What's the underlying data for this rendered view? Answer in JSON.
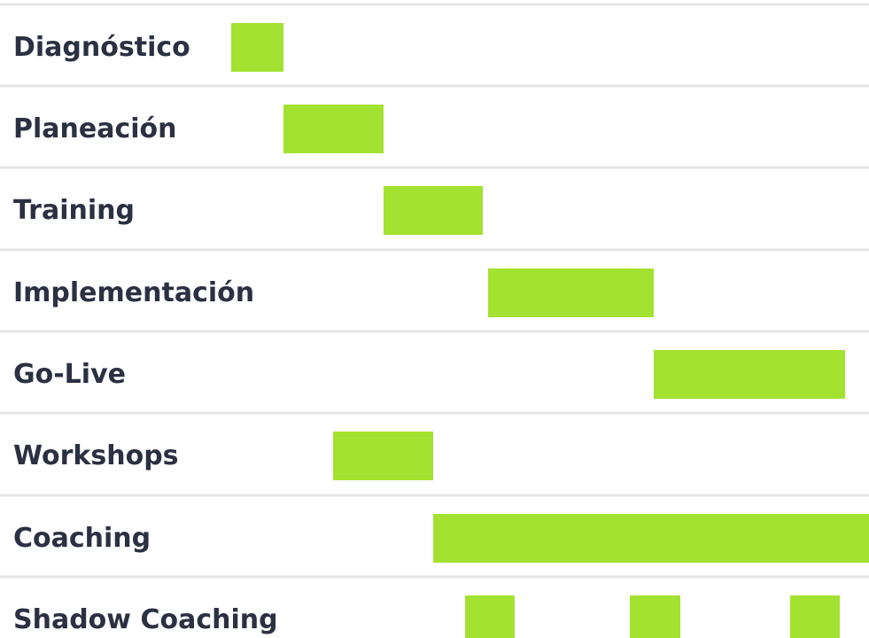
{
  "chart_data": {
    "type": "gantt",
    "title": "",
    "xlabel": "",
    "ylabel": "",
    "grid": true,
    "bar_color": "#a3e230",
    "label_color": "#2b3142",
    "grid_color": "#e6e6e6",
    "rows": [
      {
        "label": "Diagnóstico",
        "bars": [
          [
            2.61,
            3.2
          ]
        ]
      },
      {
        "label": "Planeación",
        "bars": [
          [
            3.2,
            4.33
          ]
        ]
      },
      {
        "label": "Training",
        "bars": [
          [
            4.33,
            5.45
          ]
        ]
      },
      {
        "label": "Implementación",
        "bars": [
          [
            5.51,
            7.38
          ]
        ]
      },
      {
        "label": "Go-Live",
        "bars": [
          [
            7.38,
            9.54
          ]
        ]
      },
      {
        "label": "Workshops",
        "bars": [
          [
            3.76,
            4.89
          ]
        ]
      },
      {
        "label": "Coaching",
        "bars": [
          [
            4.89,
            9.81
          ]
        ]
      },
      {
        "label": "Shadow Coaching",
        "bars": [
          [
            5.25,
            5.81
          ],
          [
            7.11,
            7.68
          ],
          [
            8.92,
            9.48
          ]
        ]
      }
    ]
  }
}
